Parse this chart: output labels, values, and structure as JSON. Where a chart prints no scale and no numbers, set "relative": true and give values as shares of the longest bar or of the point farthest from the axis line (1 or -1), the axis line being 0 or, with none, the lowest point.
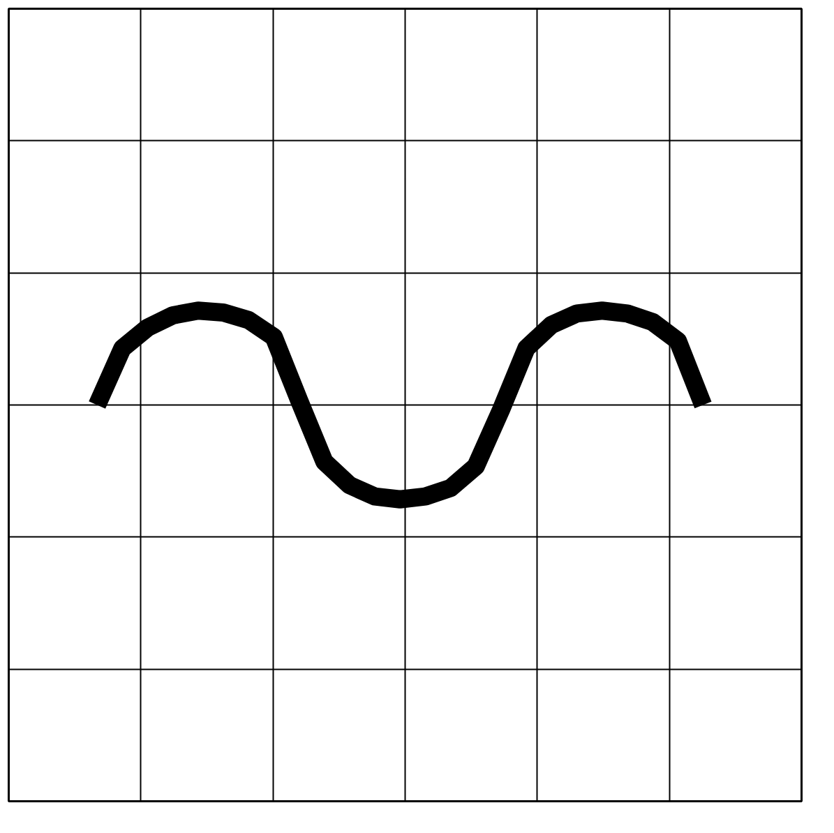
{
  "chart_data": {
    "type": "line",
    "relative": true,
    "grid": true,
    "color": "#000000",
    "categories": [
      null,
      null,
      null,
      null,
      null,
      null,
      null,
      null,
      null,
      null,
      null,
      null,
      null,
      null,
      null,
      null,
      null,
      null,
      null,
      null,
      null,
      null,
      null,
      null,
      null
    ],
    "values": [
      0,
      0.6,
      0.82,
      0.95,
      1.0,
      0.98,
      0.9,
      0.72,
      0.05,
      -0.6,
      -0.85,
      -0.97,
      -1.0,
      -0.97,
      -0.88,
      -0.65,
      -0.05,
      0.6,
      0.85,
      0.97,
      1.0,
      0.97,
      0.88,
      0.68,
      0
    ]
  }
}
